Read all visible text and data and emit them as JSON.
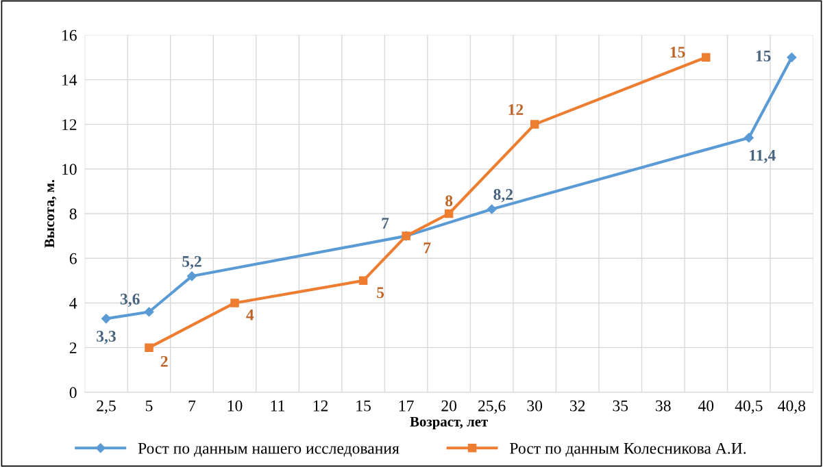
{
  "chart_data": {
    "type": "line",
    "xlabel": "Возраст, лет",
    "ylabel": "Высота, м.",
    "categories": [
      "2,5",
      "5",
      "7",
      "10",
      "11",
      "12",
      "15",
      "17",
      "20",
      "25,6",
      "30",
      "32",
      "35",
      "38",
      "40",
      "40,5",
      "40,8"
    ],
    "ylim": [
      0,
      16
    ],
    "yticks": [
      0,
      2,
      4,
      6,
      8,
      10,
      12,
      14,
      16
    ],
    "grid": true,
    "legend": "bottom",
    "series": [
      {
        "name": "Рост по данным нашего исследования",
        "color": "#5b9bd5",
        "marker": "diamond",
        "values": [
          3.3,
          3.6,
          5.2,
          null,
          null,
          null,
          null,
          7,
          null,
          8.2,
          null,
          null,
          null,
          null,
          null,
          11.4,
          15
        ],
        "value_labels": [
          "3,3",
          "3,6",
          "5,2",
          null,
          null,
          null,
          null,
          "7",
          null,
          "8,2",
          null,
          null,
          null,
          null,
          null,
          "11,4",
          "15"
        ]
      },
      {
        "name": "Рост по данным Колесникова А.И.",
        "color": "#ed7d31",
        "marker": "square",
        "values": [
          null,
          2,
          null,
          4,
          null,
          null,
          5,
          7,
          8,
          null,
          12,
          null,
          null,
          null,
          15,
          null,
          null
        ],
        "value_labels": [
          null,
          "2",
          null,
          "4",
          null,
          null,
          "5",
          "7",
          "8",
          null,
          "12",
          null,
          null,
          null,
          "15",
          null,
          null
        ]
      }
    ]
  }
}
